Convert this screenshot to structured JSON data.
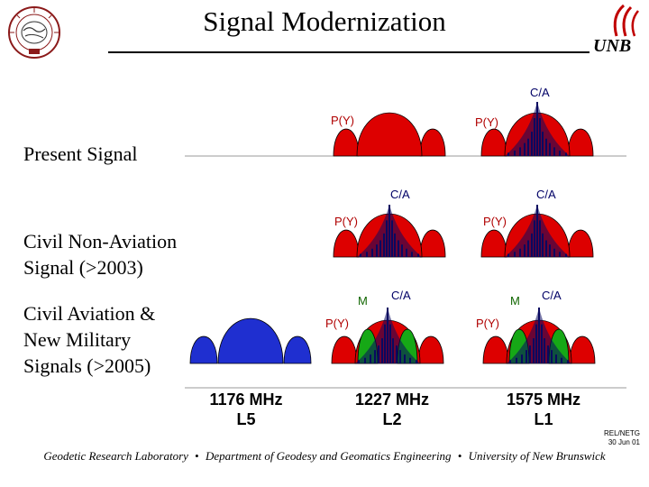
{
  "header": {
    "title": "Signal Modernization",
    "logo_text": "UNB"
  },
  "rows": [
    {
      "label_lines": [
        "Present Signal"
      ]
    },
    {
      "label_lines": [
        "Civil Non-Aviation",
        "Signal (>2003)"
      ]
    },
    {
      "label_lines": [
        "Civil Aviation &",
        "New Military",
        "Signals (>2005)"
      ]
    }
  ],
  "signal_labels": {
    "ca": "C/A",
    "py": "P(Y)",
    "m": "M"
  },
  "frequencies": [
    {
      "mhz": "1176 MHz",
      "band": "L5"
    },
    {
      "mhz": "1227 MHz",
      "band": "L2"
    },
    {
      "mhz": "1575 MHz",
      "band": "L1"
    }
  ],
  "footnote": {
    "line1": "REL/NETG",
    "line2": "30 Jun 01"
  },
  "footer": {
    "part1": "Geodetic Research Laboratory",
    "separator": "•",
    "part2": "Department of Geodesy and Geomatics Engineering",
    "part3": "University of New Brunswick"
  },
  "colors": {
    "red": "#dd0000",
    "blue": "#1f2fd0",
    "green": "#16a816",
    "dark_blue": "#0a0a60"
  }
}
